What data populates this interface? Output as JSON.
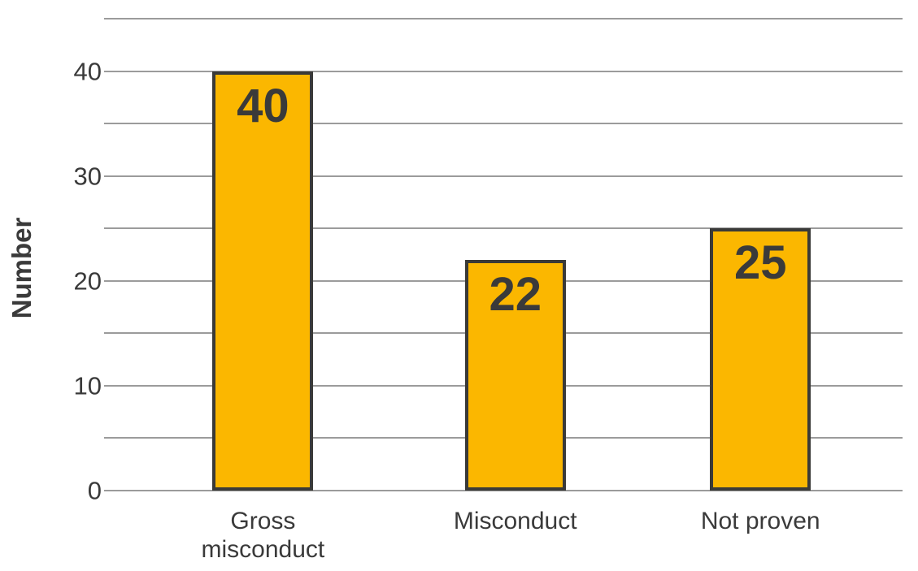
{
  "chart_data": {
    "type": "bar",
    "categories": [
      "Gross misconduct",
      "Misconduct",
      "Not proven"
    ],
    "values": [
      40,
      22,
      25
    ],
    "show_value_labels": true,
    "value_labels": [
      "40",
      "22",
      "25"
    ],
    "title": "",
    "xlabel": "",
    "ylabel": "Number",
    "ylim": [
      0,
      45
    ],
    "yticks": [
      0,
      10,
      20,
      30,
      40
    ],
    "ytick_labels": [
      "0",
      "10",
      "20",
      "30",
      "40"
    ],
    "gridlines_every": 5,
    "grid": true,
    "legend": false,
    "colors": {
      "bar_fill": "#FBB700",
      "bar_border": "#3A3A38",
      "gridline": "#9B9B9B",
      "text": "#3A3A3A",
      "background": "#FFFFFF"
    }
  }
}
